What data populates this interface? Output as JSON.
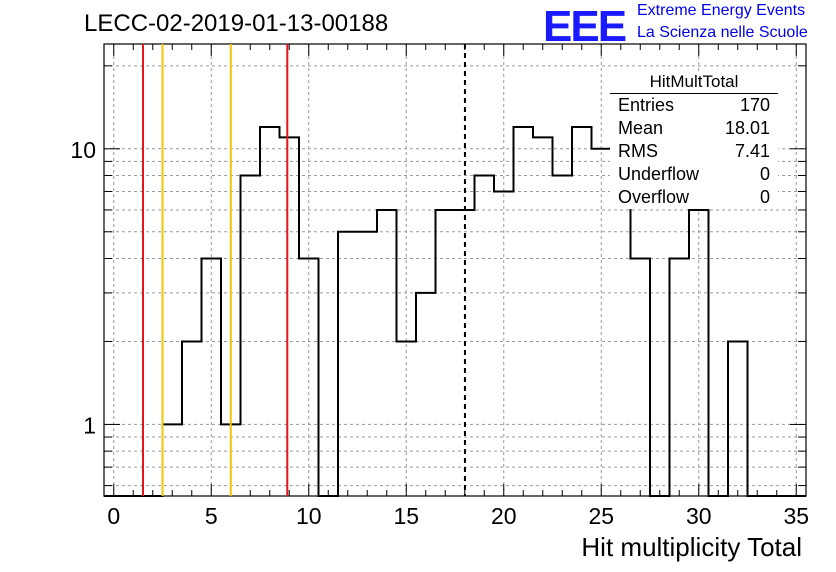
{
  "title": "LECC-02-2019-01-13-00188",
  "logo": {
    "mark": "EEE",
    "line1": "Extreme Energy Events",
    "line2": "La Scienza nelle Scuole"
  },
  "stats_box": {
    "title": "HitMultTotal",
    "rows": [
      {
        "label": "Entries",
        "value": "170"
      },
      {
        "label": "Mean",
        "value": "18.01"
      },
      {
        "label": "RMS",
        "value": "7.41"
      },
      {
        "label": "Underflow",
        "value": "0"
      },
      {
        "label": "Overflow",
        "value": "0"
      }
    ]
  },
  "chart_data": {
    "type": "bar",
    "style": "histogram-step",
    "xlabel": "Hit multiplicity Total",
    "ylabel": "",
    "xlim": [
      -0.5,
      35.5
    ],
    "ylim": [
      0.55,
      24
    ],
    "yscale": "log",
    "grid": true,
    "bin_edges_start": -0.5,
    "bin_width": 1,
    "values": [
      0,
      0,
      0,
      1,
      2,
      4,
      1,
      8,
      12,
      11,
      4,
      0,
      5,
      5,
      6,
      2,
      3,
      6,
      6,
      8,
      7,
      12,
      11,
      8,
      12,
      10,
      10,
      4,
      0,
      4,
      6,
      0,
      2,
      0,
      0,
      0
    ],
    "x_ticks": [
      0,
      5,
      10,
      15,
      20,
      25,
      30,
      35
    ],
    "y_ticks": [
      1,
      10
    ],
    "vertical_lines": [
      {
        "x": 1.5,
        "color": "#e8131b",
        "style": "solid"
      },
      {
        "x": 2.5,
        "color": "#f2c300",
        "style": "solid"
      },
      {
        "x": 6.0,
        "color": "#f2c300",
        "style": "solid"
      },
      {
        "x": 8.9,
        "color": "#e8131b",
        "style": "solid"
      },
      {
        "x": 18.01,
        "color": "#000000",
        "style": "dashed"
      }
    ],
    "line_color": "#000000"
  }
}
